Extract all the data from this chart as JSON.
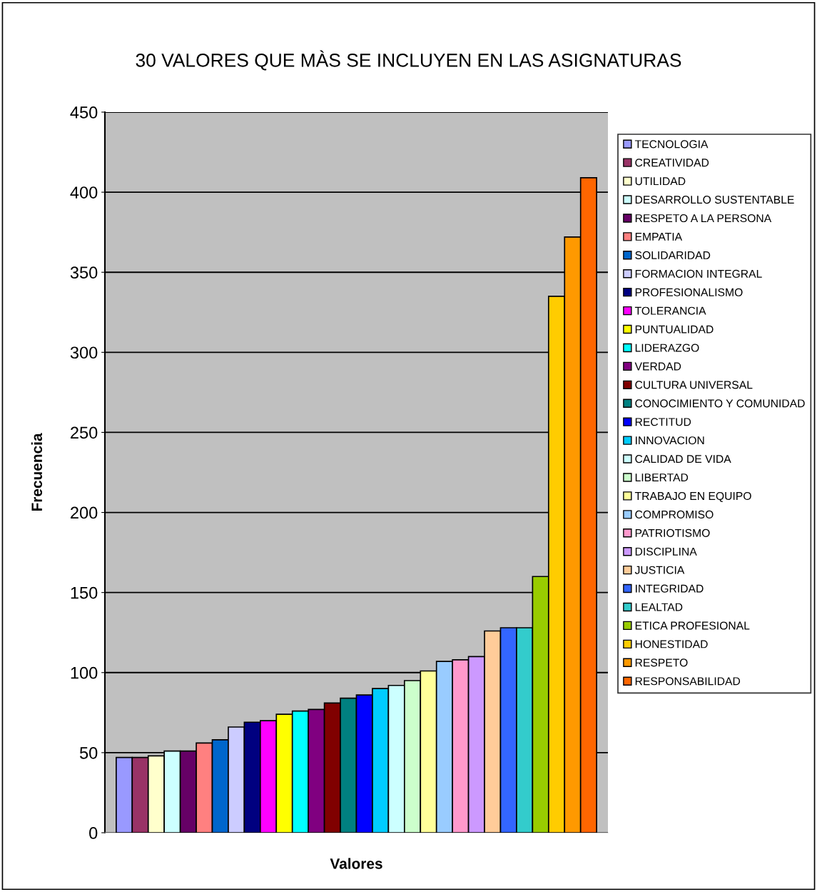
{
  "chart_data": {
    "type": "bar",
    "title": "30 VALORES QUE MÀS SE INCLUYEN EN LAS ASIGNATURAS",
    "xlabel": "Valores",
    "ylabel": "Frecuencia",
    "categories": [
      null
    ],
    "series": [
      {
        "name": "TECNOLOGIA",
        "color": "#9999ff",
        "values": [
          47
        ]
      },
      {
        "name": "CREATIVIDAD",
        "color": "#993366",
        "values": [
          47
        ]
      },
      {
        "name": "UTILIDAD",
        "color": "#ffffcc",
        "values": [
          48
        ]
      },
      {
        "name": "DESARROLLO SUSTENTABLE",
        "color": "#ccffff",
        "values": [
          51
        ]
      },
      {
        "name": "RESPETO A LA PERSONA",
        "color": "#660066",
        "values": [
          51
        ]
      },
      {
        "name": "EMPATIA",
        "color": "#ff8080",
        "values": [
          56
        ]
      },
      {
        "name": "SOLIDARIDAD",
        "color": "#0066cc",
        "values": [
          58
        ]
      },
      {
        "name": "FORMACION INTEGRAL",
        "color": "#ccccff",
        "values": [
          66
        ]
      },
      {
        "name": "PROFESIONALISMO",
        "color": "#000080",
        "values": [
          69
        ]
      },
      {
        "name": "TOLERANCIA",
        "color": "#ff00ff",
        "values": [
          70
        ]
      },
      {
        "name": "PUNTUALIDAD",
        "color": "#ffff00",
        "values": [
          74
        ]
      },
      {
        "name": "LIDERAZGO",
        "color": "#00ffff",
        "values": [
          76
        ]
      },
      {
        "name": "VERDAD",
        "color": "#800080",
        "values": [
          77
        ]
      },
      {
        "name": "CULTURA UNIVERSAL",
        "color": "#800000",
        "values": [
          81
        ]
      },
      {
        "name": "CONOCIMIENTO Y COMUNIDAD",
        "color": "#008080",
        "values": [
          84
        ]
      },
      {
        "name": "RECTITUD",
        "color": "#0000ff",
        "values": [
          86
        ]
      },
      {
        "name": "INNOVACION",
        "color": "#00ccff",
        "values": [
          90
        ]
      },
      {
        "name": "CALIDAD DE VIDA",
        "color": "#ccffff",
        "values": [
          92
        ]
      },
      {
        "name": "LIBERTAD",
        "color": "#ccffcc",
        "values": [
          95
        ]
      },
      {
        "name": "TRABAJO EN EQUIPO",
        "color": "#ffff99",
        "values": [
          101
        ]
      },
      {
        "name": "COMPROMISO",
        "color": "#99ccff",
        "values": [
          107
        ]
      },
      {
        "name": "PATRIOTISMO",
        "color": "#ff99cc",
        "values": [
          108
        ]
      },
      {
        "name": "DISCIPLINA",
        "color": "#cc99ff",
        "values": [
          110
        ]
      },
      {
        "name": "JUSTICIA",
        "color": "#ffcc99",
        "values": [
          126
        ]
      },
      {
        "name": "INTEGRIDAD",
        "color": "#3366ff",
        "values": [
          128
        ]
      },
      {
        "name": "LEALTAD",
        "color": "#33cccc",
        "values": [
          128
        ]
      },
      {
        "name": "ETICA PROFESIONAL",
        "color": "#99cc00",
        "values": [
          160
        ]
      },
      {
        "name": "HONESTIDAD",
        "color": "#ffcc00",
        "values": [
          335
        ]
      },
      {
        "name": "RESPETO",
        "color": "#ff9900",
        "values": [
          372
        ]
      },
      {
        "name": "RESPONSABILIDAD",
        "color": "#ff6600",
        "values": [
          409
        ]
      }
    ],
    "ylim": [
      0,
      450
    ],
    "yticks": [
      0,
      50,
      100,
      150,
      200,
      250,
      300,
      350,
      400,
      450
    ],
    "grid": "y",
    "legend": "right"
  }
}
